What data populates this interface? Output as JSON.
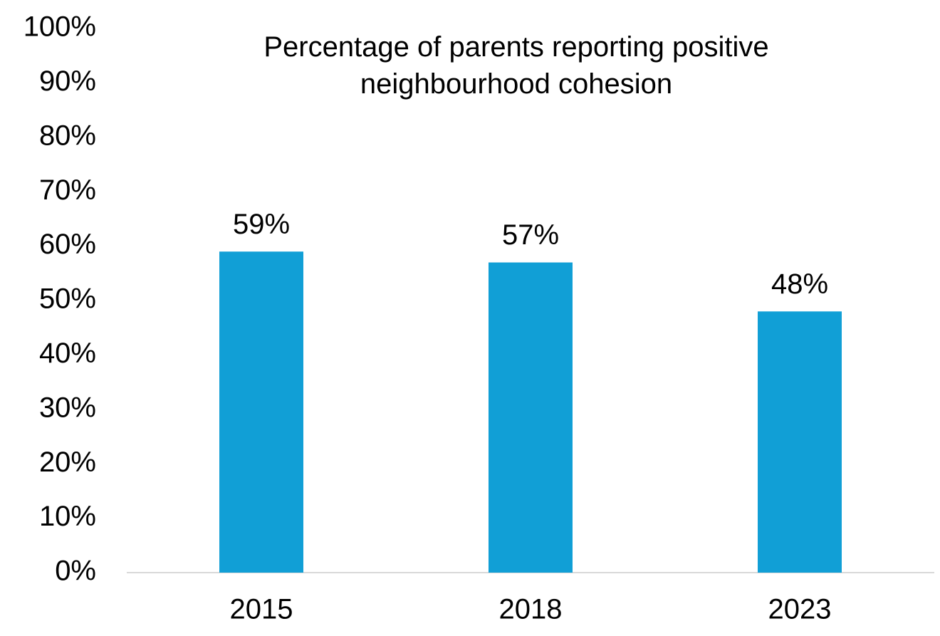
{
  "chart_data": {
    "type": "bar",
    "title": "Percentage of parents reporting positive neighbourhood cohesion",
    "categories": [
      "2015",
      "2018",
      "2023"
    ],
    "values": [
      59,
      57,
      48
    ],
    "value_labels": [
      "59%",
      "57%",
      "48%"
    ],
    "color": "#119fd6",
    "ylim": [
      0,
      100
    ],
    "yticks": [
      {
        "value": 0,
        "label": "0%"
      },
      {
        "value": 10,
        "label": "10%"
      },
      {
        "value": 20,
        "label": "20%"
      },
      {
        "value": 30,
        "label": "30%"
      },
      {
        "value": 40,
        "label": "40%"
      },
      {
        "value": 50,
        "label": "50%"
      },
      {
        "value": 60,
        "label": "60%"
      },
      {
        "value": 70,
        "label": "70%"
      },
      {
        "value": 80,
        "label": "80%"
      },
      {
        "value": 90,
        "label": "90%"
      },
      {
        "value": 100,
        "label": "100%"
      }
    ],
    "grid": false
  }
}
